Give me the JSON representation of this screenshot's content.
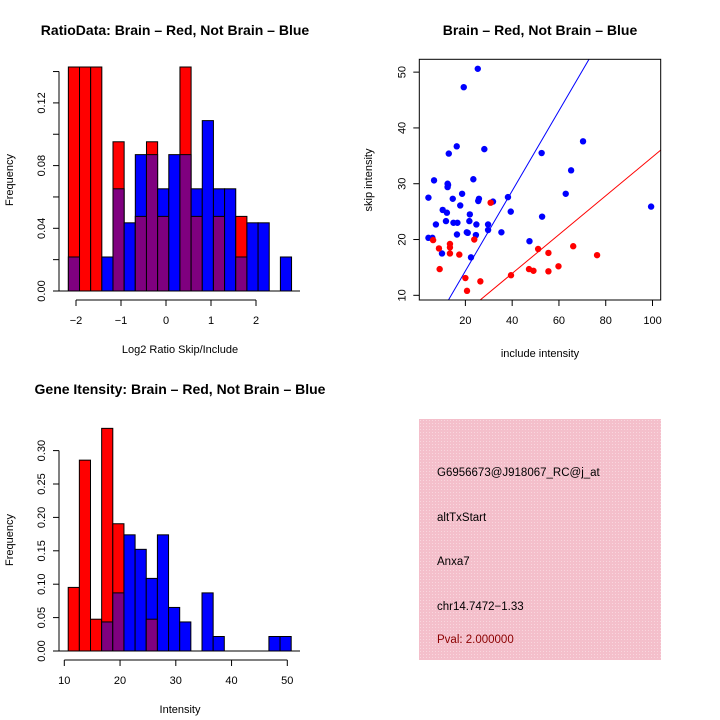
{
  "colors": {
    "red": "#FF0000",
    "blue": "#0000FF",
    "overlap": "#7F007F",
    "panel": "#F6C3CE",
    "pval": "#8B0000"
  },
  "chart_data": [
    {
      "type": "bar",
      "subtype": "overlaid-histogram",
      "title": "RatioData: Brain – Red, Not Brain – Blue",
      "xlabel": "Log2 Ratio Skip/Include",
      "ylabel": "Frequency",
      "bin_start": -2.17,
      "bin_width": 0.248,
      "xticks": [
        -2,
        -1,
        0,
        1,
        2
      ],
      "xtick_labels": [
        "−2",
        "−1",
        "0",
        "1",
        "2"
      ],
      "yticks": [
        0,
        0.02,
        0.04,
        0.06,
        0.08,
        0.1,
        0.12,
        0.14
      ],
      "ytick_labels": [
        "0.00",
        "",
        "0.04",
        "",
        "0.08",
        "",
        "0.12",
        ""
      ],
      "ylim": [
        0,
        0.142
      ],
      "series": [
        {
          "name": "Brain",
          "color": "red",
          "values": [
            0.1429,
            0.1429,
            0.1429,
            0,
            0.0952,
            0,
            0.0476,
            0.0952,
            0.0476,
            0,
            0.1429,
            0.0476,
            0,
            0.0476,
            0,
            0.0476,
            0,
            0,
            0,
            0
          ]
        },
        {
          "name": "Not Brain",
          "color": "blue",
          "values": [
            0.0217,
            0,
            0,
            0.0217,
            0.0652,
            0.0435,
            0.087,
            0.087,
            0.0652,
            0.087,
            0.087,
            0.0652,
            0.1087,
            0.0652,
            0.0652,
            0.0217,
            0.0435,
            0.0435,
            0,
            0.0217
          ]
        }
      ]
    },
    {
      "type": "scatter",
      "title": "Brain – Red, Not Brain – Blue",
      "xlabel": "include intensity",
      "ylabel": "skip intensity",
      "xlim": [
        0.3,
        103.5
      ],
      "ylim": [
        9.16,
        52.3
      ],
      "xticks": [
        20,
        40,
        60,
        80,
        100
      ],
      "yticks": [
        10,
        20,
        30,
        40,
        50
      ],
      "series": [
        {
          "name": "Not Brain",
          "color": "blue",
          "line_slope": 0.718,
          "line_intercept": 0,
          "points": [
            [
              25.3,
              50.6
            ],
            [
              19.3,
              47.3
            ],
            [
              16.3,
              36.7
            ],
            [
              12.9,
              35.4
            ],
            [
              28.1,
              36.2
            ],
            [
              6.6,
              30.6
            ],
            [
              12.4,
              30.0
            ],
            [
              12.4,
              29.4
            ],
            [
              23.4,
              30.8
            ],
            [
              4.2,
              27.5
            ],
            [
              14.6,
              27.3
            ],
            [
              18.6,
              28.2
            ],
            [
              17.8,
              26.1
            ],
            [
              25.5,
              26.9
            ],
            [
              25.8,
              27.3
            ],
            [
              31.8,
              26.8
            ],
            [
              38.2,
              27.6
            ],
            [
              39.4,
              25.0
            ],
            [
              10.3,
              25.3
            ],
            [
              12.1,
              24.8
            ],
            [
              21.9,
              24.5
            ],
            [
              21.7,
              23.3
            ],
            [
              11.7,
              23.3
            ],
            [
              14.9,
              23.0
            ],
            [
              16.6,
              23.0
            ],
            [
              7.4,
              22.7
            ],
            [
              24.7,
              22.7
            ],
            [
              29.7,
              22.7
            ],
            [
              29.7,
              21.7
            ],
            [
              20.6,
              21.3
            ],
            [
              21.0,
              21.2
            ],
            [
              16.4,
              20.9
            ],
            [
              24.5,
              20.8
            ],
            [
              35.4,
              21.3
            ],
            [
              4.2,
              20.3
            ],
            [
              5.9,
              20.3
            ],
            [
              10.0,
              17.5
            ],
            [
              22.4,
              16.8
            ],
            [
              52.6,
              35.5
            ],
            [
              52.8,
              24.1
            ],
            [
              47.4,
              19.7
            ],
            [
              62.9,
              28.2
            ],
            [
              65.2,
              32.4
            ],
            [
              70.3,
              37.6
            ],
            [
              99.4,
              25.9
            ],
            [
              12.6,
              29.8
            ]
          ]
        },
        {
          "name": "Brain",
          "color": "red",
          "line_slope": 0.348,
          "line_intercept": 0,
          "points": [
            [
              6.2,
              19.9
            ],
            [
              8.7,
              18.4
            ],
            [
              9.0,
              14.7
            ],
            [
              13.4,
              19.2
            ],
            [
              13.4,
              18.6
            ],
            [
              13.4,
              17.5
            ],
            [
              17.4,
              17.3
            ],
            [
              20.0,
              13.1
            ],
            [
              20.7,
              10.8
            ],
            [
              23.8,
              20.0
            ],
            [
              26.4,
              12.5
            ],
            [
              30.8,
              26.6
            ],
            [
              39.5,
              13.6
            ],
            [
              47.2,
              14.7
            ],
            [
              49.1,
              14.4
            ],
            [
              51.1,
              18.3
            ],
            [
              55.5,
              17.6
            ],
            [
              55.5,
              14.3
            ],
            [
              59.8,
              15.2
            ],
            [
              66.1,
              18.8
            ],
            [
              76.3,
              17.2
            ]
          ]
        }
      ]
    },
    {
      "type": "bar",
      "subtype": "overlaid-histogram",
      "title": "Gene Itensity: Brain – Red, Not Brain – Blue",
      "xlabel": "Intensity",
      "ylabel": "Frequency",
      "bin_start": 10.7,
      "bin_width": 2,
      "xticks": [
        10,
        20,
        30,
        40,
        50
      ],
      "xtick_labels": [
        "10",
        "20",
        "30",
        "40",
        "50"
      ],
      "yticks": [
        0,
        0.05,
        0.1,
        0.15,
        0.2,
        0.25,
        0.3
      ],
      "ytick_labels": [
        "0.00",
        "0.05",
        "0.10",
        "0.15",
        "0.20",
        "0.25",
        "0.30"
      ],
      "ylim": [
        0,
        0.333
      ],
      "series": [
        {
          "name": "Brain",
          "color": "red",
          "values": [
            0.0952,
            0.2857,
            0.0476,
            0.3333,
            0.1905,
            0,
            0,
            0.0476,
            0,
            0,
            0,
            0,
            0,
            0,
            0,
            0,
            0,
            0,
            0,
            0
          ]
        },
        {
          "name": "Not Brain",
          "color": "blue",
          "values": [
            0,
            0,
            0,
            0.0435,
            0.087,
            0.1739,
            0.1522,
            0.1087,
            0.1739,
            0.0652,
            0.0435,
            0,
            0.087,
            0.0217,
            0,
            0,
            0,
            0,
            0.0217,
            0.0217
          ]
        }
      ]
    }
  ],
  "info_panel": {
    "probe_id": "G6956673@J918067_RC@j_at",
    "event_type": "altTxStart",
    "gene": "Anxa7",
    "location": "chr14.7472−1.33",
    "pval": "Pval: 2.000000"
  }
}
